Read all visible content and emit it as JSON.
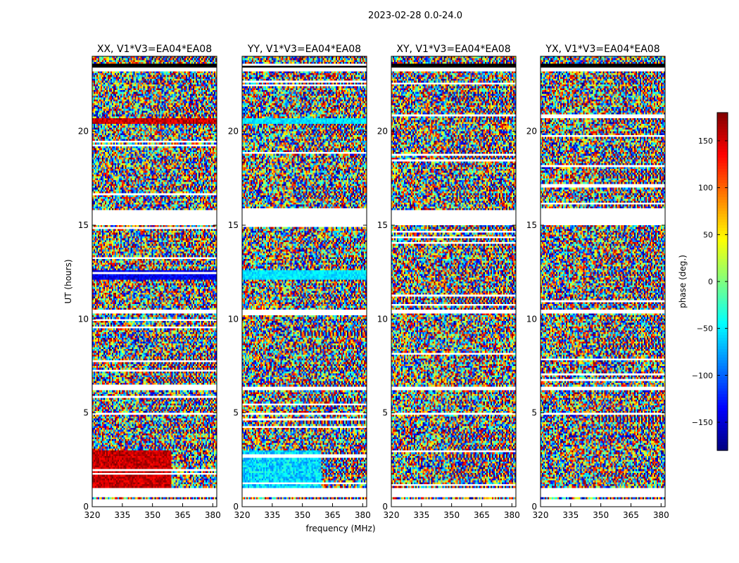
{
  "suptitle": "2023-02-28 0.0-24.0",
  "chart_data": {
    "type": "heatmap",
    "title": "2023-02-28 0.0-24.0",
    "xlabel": "frequency (MHz)",
    "ylabel": "UT (hours)",
    "xlim": [
      320,
      382
    ],
    "ylim": [
      0,
      24
    ],
    "xticks": [
      "320",
      "335",
      "350",
      "365",
      "380"
    ],
    "yticks": [
      "0",
      "5",
      "10",
      "15",
      "20"
    ],
    "panels": [
      {
        "title": "XX, V1*V3=EA04*EA08",
        "bias": "red"
      },
      {
        "title": "YY, V1*V3=EA04*EA08",
        "bias": "cyan"
      },
      {
        "title": "XY, V1*V3=EA04*EA08",
        "bias": "none"
      },
      {
        "title": "YX, V1*V3=EA04*EA08",
        "bias": "none"
      }
    ],
    "colorbar": {
      "label": "phase (deg.)",
      "range": [
        -180,
        180
      ],
      "ticks": [
        "150",
        "100",
        "50",
        "0",
        "−50",
        "−100",
        "−150"
      ],
      "colormap": "jet"
    }
  }
}
